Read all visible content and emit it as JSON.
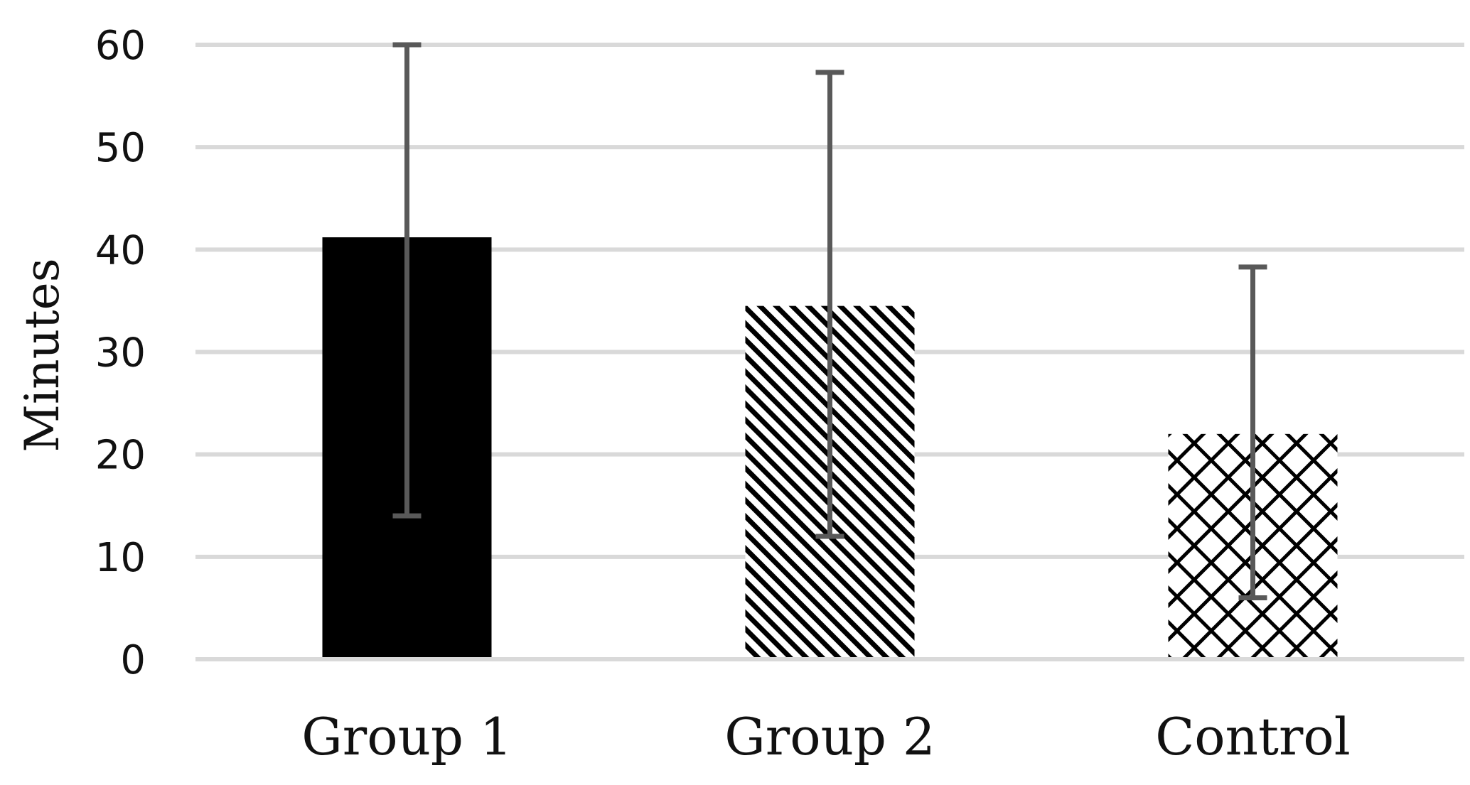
{
  "chart_data": {
    "type": "bar",
    "title": "",
    "xlabel": "",
    "ylabel": "Minutes",
    "ylim": [
      0,
      60
    ],
    "yticks": [
      0,
      10,
      20,
      30,
      40,
      50,
      60
    ],
    "grid": true,
    "legend": "none",
    "categories": [
      "Group 1",
      "Group 2",
      "Control"
    ],
    "values": [
      41.2,
      34.5,
      22
    ],
    "error_low": [
      14,
      12,
      6
    ],
    "error_high": [
      60,
      57.3,
      38.3
    ],
    "fills": [
      "solid",
      "diagonal-stripes",
      "crosshatch"
    ],
    "colors": {
      "bar": "#000000",
      "grid": "#d9d9d9",
      "error_bar": "#595959"
    }
  }
}
